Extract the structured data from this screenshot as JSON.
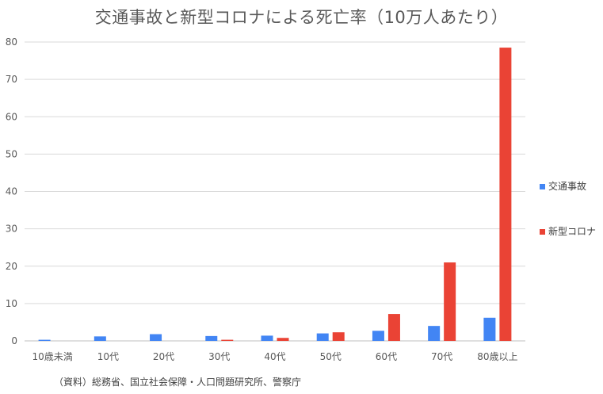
{
  "chart_data": {
    "type": "bar",
    "title": "交通事故と新型コロナによる死亡率（10万人あたり）",
    "categories": [
      "10歳未満",
      "10代",
      "20代",
      "30代",
      "40代",
      "50代",
      "60代",
      "70代",
      "80歳以上"
    ],
    "series": [
      {
        "name": "交通事故",
        "color": "#4285F4",
        "values": [
          0.3,
          1.2,
          1.8,
          1.3,
          1.4,
          2.0,
          2.7,
          4.0,
          6.2
        ]
      },
      {
        "name": "新型コロナ",
        "color": "#EA4335",
        "values": [
          0,
          0,
          0,
          0.3,
          0.8,
          2.3,
          7.2,
          21.0,
          78.5
        ]
      }
    ],
    "ylim": [
      0,
      80
    ],
    "yticks": [
      0,
      10,
      20,
      30,
      40,
      50,
      60,
      70,
      80
    ],
    "grid": true,
    "legend": "right"
  },
  "source_note": "（資料）総務省、国立社会保障・人口問題研究所、警察庁"
}
